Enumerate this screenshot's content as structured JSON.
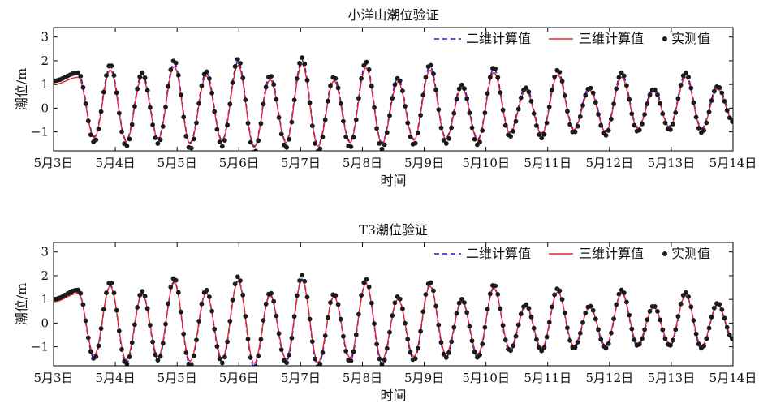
{
  "figure": {
    "background": "#ffffff",
    "axis_color": "#000000"
  },
  "chart_data": [
    {
      "type": "line",
      "title": "小洋山潮位验证",
      "xlabel": "时间",
      "ylabel": "潮位/m",
      "xlim": [
        3.0,
        14.0
      ],
      "ylim": [
        -1.8,
        3.4
      ],
      "xticks": [
        3,
        4,
        5,
        6,
        7,
        8,
        9,
        10,
        11,
        12,
        13,
        14
      ],
      "xtick_labels": [
        "5月3日",
        "5月4日",
        "5月5日",
        "5月6日",
        "5月7日",
        "5月8日",
        "5月9日",
        "5月10日",
        "5月11日",
        "5月12日",
        "5月13日",
        "5月14日"
      ],
      "yticks": [
        -1,
        0,
        1,
        2,
        3
      ],
      "ytick_labels": [
        "−1",
        "0",
        "1",
        "2",
        "3"
      ],
      "grid": false,
      "legend": {
        "placement": "top-right",
        "orientation": "horizontal"
      },
      "series": [
        {
          "name": "二维计算值",
          "style": "dashed-line",
          "color": "#1a1adb"
        },
        {
          "name": "三维计算值",
          "style": "solid-line",
          "color": "#e8242b"
        },
        {
          "name": "实测值",
          "style": "dots",
          "color": "#1b1b1b"
        }
      ],
      "tide": {
        "start": 3.0,
        "period_days": 0.5175,
        "phase_first_high": 3.4,
        "highs": [
          1.3,
          1.6,
          1.3,
          1.75,
          1.35,
          1.8,
          1.2,
          1.85,
          1.15,
          1.7,
          1.1,
          1.6,
          0.85,
          1.5,
          0.75,
          1.4,
          0.75,
          1.3,
          0.7,
          1.3,
          0.8,
          0.85
        ],
        "lows": [
          1.0,
          -1.25,
          -1.4,
          -1.3,
          -1.5,
          -1.4,
          -1.65,
          -1.45,
          -1.6,
          -1.45,
          -1.5,
          -1.35,
          -1.3,
          -1.35,
          -1.05,
          -1.1,
          -0.9,
          -1.0,
          -0.85,
          -0.8,
          -0.9,
          -1.0,
          -0.6
        ],
        "end_value": -0.5,
        "model2d_offsets": {
          "high": 0.15,
          "low": 0.05
        },
        "observed_scale": 1.15
      }
    },
    {
      "type": "line",
      "title": "T3潮位验证",
      "xlabel": "时间",
      "ylabel": "潮位/m",
      "xlim": [
        3.0,
        14.0
      ],
      "ylim": [
        -1.8,
        3.4
      ],
      "xticks": [
        3,
        4,
        5,
        6,
        7,
        8,
        9,
        10,
        11,
        12,
        13,
        14
      ],
      "xtick_labels": [
        "5月3日",
        "5月4日",
        "5月5日",
        "5月6日",
        "5月7日",
        "5月8日",
        "5月9日",
        "5月10日",
        "5月11日",
        "5月12日",
        "5月13日",
        "5月14日"
      ],
      "yticks": [
        -1,
        0,
        1,
        2,
        3
      ],
      "ytick_labels": [
        "−1",
        "0",
        "1",
        "2",
        "3"
      ],
      "grid": false,
      "legend": {
        "placement": "top-right",
        "orientation": "horizontal"
      },
      "series": [
        {
          "name": "二维计算值",
          "style": "dashed-line",
          "color": "#1a1adb"
        },
        {
          "name": "三维计算值",
          "style": "solid-line",
          "color": "#e8242b"
        },
        {
          "name": "实测值",
          "style": "dots",
          "color": "#1b1b1b"
        }
      ],
      "tide": {
        "start": 3.0,
        "period_days": 0.5175,
        "phase_first_high": 3.4,
        "highs": [
          1.25,
          1.55,
          1.2,
          1.7,
          1.25,
          1.75,
          1.15,
          1.8,
          1.1,
          1.65,
          1.0,
          1.55,
          0.9,
          1.45,
          0.7,
          1.3,
          0.65,
          1.25,
          0.65,
          1.15,
          0.75,
          0.8
        ],
        "lows": [
          0.9,
          -1.35,
          -1.55,
          -1.4,
          -1.6,
          -1.5,
          -1.7,
          -1.5,
          -1.65,
          -1.45,
          -1.55,
          -1.4,
          -1.3,
          -1.3,
          -1.05,
          -1.05,
          -0.95,
          -0.95,
          -0.85,
          -0.85,
          -0.95,
          -1.05,
          -0.6
        ],
        "end_value": -0.6,
        "model2d_offsets": {
          "high": 0.05,
          "low": -0.15
        },
        "observed_scale": 1.12
      }
    }
  ]
}
